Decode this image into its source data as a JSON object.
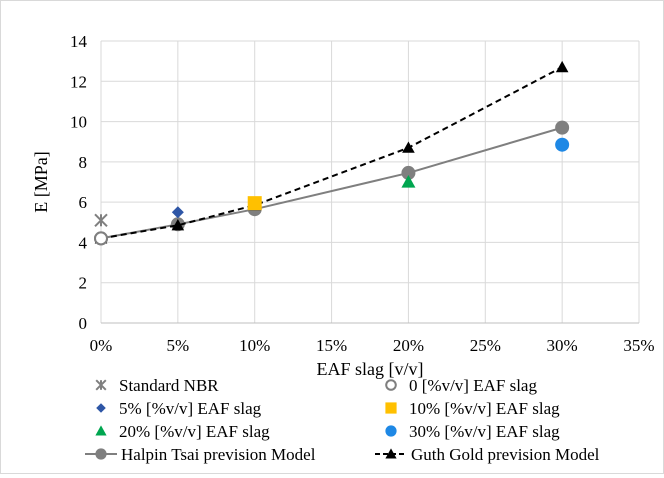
{
  "chart_data": {
    "type": "scatter",
    "title": "",
    "xlabel": "EAF slag [v/v]",
    "ylabel": "E [MPa]",
    "xlim": [
      0,
      35
    ],
    "ylim": [
      0,
      14
    ],
    "x_ticks": [
      0,
      5,
      10,
      15,
      20,
      25,
      30,
      35
    ],
    "x_tick_labels": [
      "0%",
      "5%",
      "10%",
      "15%",
      "20%",
      "25%",
      "30%",
      "35%"
    ],
    "y_ticks": [
      0,
      2,
      4,
      6,
      8,
      10,
      12,
      14
    ],
    "y_tick_labels": [
      "0",
      "2",
      "4",
      "6",
      "8",
      "10",
      "12",
      "14"
    ],
    "grid": true,
    "legend_position": "bottom",
    "series": [
      {
        "name": "Standard NBR",
        "marker": "asterisk",
        "color": "#7f7f7f",
        "line": "none",
        "x": [
          0
        ],
        "y": [
          5.1
        ]
      },
      {
        "name": "0 [%v/v] EAF slag",
        "marker": "circle-open",
        "color": "#7f7f7f",
        "line": "none",
        "x": [
          0
        ],
        "y": [
          4.2
        ]
      },
      {
        "name": "5% [%v/v] EAF slag",
        "marker": "diamond",
        "color": "#2e56a6",
        "line": "none",
        "x": [
          5
        ],
        "y": [
          5.5
        ]
      },
      {
        "name": "10% [%v/v] EAF slag",
        "marker": "square",
        "color": "#ffc000",
        "line": "none",
        "x": [
          10
        ],
        "y": [
          5.95
        ]
      },
      {
        "name": "20% [%v/v] EAF slag",
        "marker": "triangle",
        "color": "#00a650",
        "line": "none",
        "x": [
          20
        ],
        "y": [
          7.0
        ]
      },
      {
        "name": "30% [%v/v] EAF slag",
        "marker": "circle",
        "color": "#1e88e5",
        "line": "none",
        "x": [
          30
        ],
        "y": [
          8.85
        ]
      },
      {
        "name": "Halpin Tsai prevision Model",
        "marker": "circle",
        "color": "#7f7f7f",
        "line": "solid",
        "x": [
          0,
          5,
          10,
          20,
          30
        ],
        "y": [
          4.2,
          4.9,
          5.65,
          7.45,
          9.7
        ]
      },
      {
        "name": "Guth Gold prevision Model",
        "marker": "triangle",
        "color": "#000000",
        "line": "dashed",
        "x": [
          0,
          5,
          10,
          20,
          30
        ],
        "y": [
          4.2,
          4.85,
          5.85,
          8.7,
          12.7
        ]
      }
    ]
  }
}
